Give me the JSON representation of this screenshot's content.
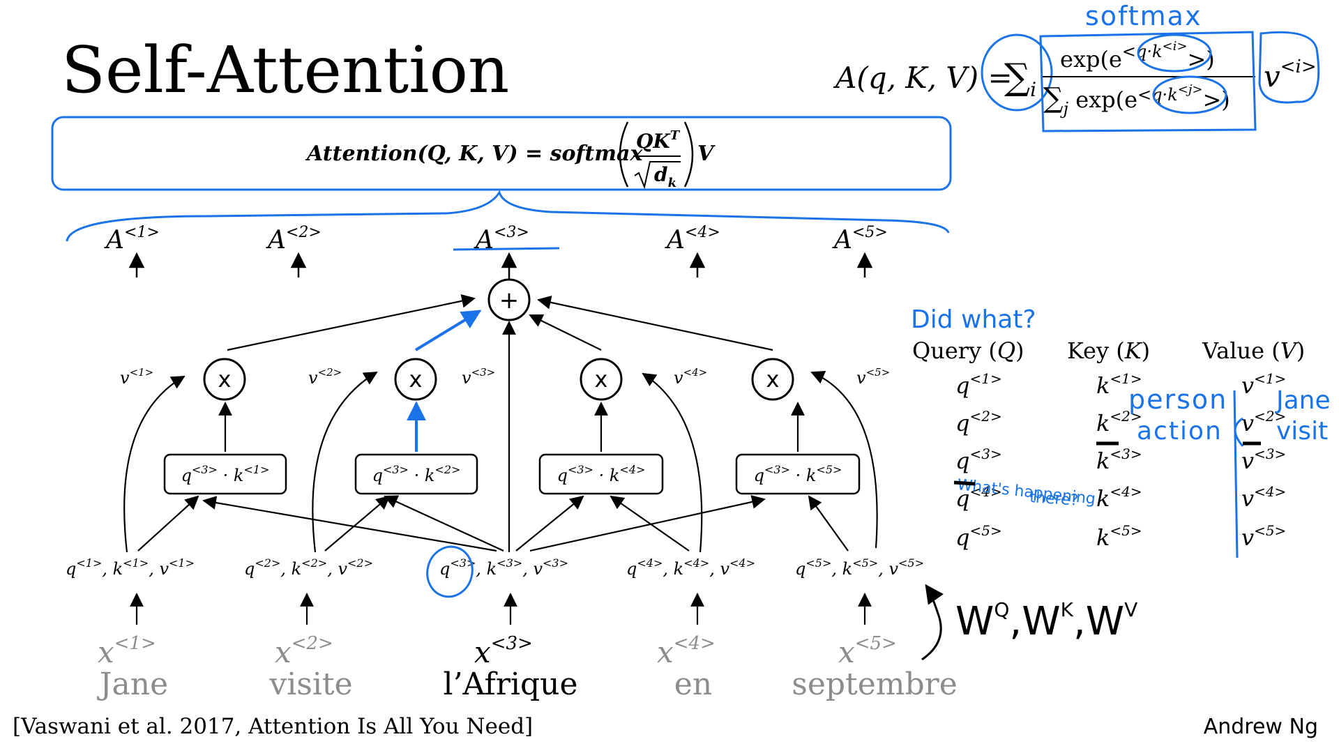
{
  "title": "Self-Attention",
  "formula_box": {
    "lhs": "Attention(Q, K, V) = softmax",
    "numerator": "QK",
    "numerator_sup": "T",
    "denominator": "d",
    "denominator_sub": "k",
    "trailing": "V"
  },
  "top_formula": {
    "lhs": "A(q, K, V) = ",
    "sum_i": "∑",
    "sum_i_sub": "i",
    "num_left": "exp(e",
    "num_inner": "<q·k",
    "num_sup": "<i>",
    "num_right": ">)",
    "den_sum": "∑",
    "den_sum_sub": "j",
    "den_left": " exp(e",
    "den_inner": "<q·k",
    "den_sup": "<j>",
    "den_right": ">)",
    "v_term": "v",
    "v_sup": "<i>"
  },
  "annotations": {
    "softmax": "softmax",
    "did_what": "Did what?",
    "person": "person",
    "action": "action",
    "jane": "Jane",
    "visit": "visit",
    "whats_happening_1": "What's happening",
    "whats_happening_2": "there?",
    "weights": "W",
    "weights_q": "Q",
    "weights_k": "K",
    "weights_v": "V",
    "weights_sep": ","
  },
  "outputs": [
    {
      "base": "A",
      "sup": "<1>"
    },
    {
      "base": "A",
      "sup": "<2>"
    },
    {
      "base": "A",
      "sup": "<3>"
    },
    {
      "base": "A",
      "sup": "<4>"
    },
    {
      "base": "A",
      "sup": "<5>"
    }
  ],
  "plus_symbol": "+",
  "mult_symbol": "x",
  "v_labels": [
    "v",
    "v",
    "v",
    "v",
    "v"
  ],
  "v_sups": [
    "<1>",
    "<2>",
    "<3>",
    "<4>",
    "<5>"
  ],
  "dot_boxes": [
    {
      "q": "q",
      "q_sup": "<3>",
      "dot": " · ",
      "k": "k",
      "k_sup": "<1>"
    },
    {
      "q": "q",
      "q_sup": "<3>",
      "dot": " · ",
      "k": "k",
      "k_sup": "<2>"
    },
    {
      "q": "q",
      "q_sup": "<3>",
      "dot": " · ",
      "k": "k",
      "k_sup": "<4>"
    },
    {
      "q": "q",
      "q_sup": "<3>",
      "dot": " · ",
      "k": "k",
      "k_sup": "<5>"
    }
  ],
  "qkv_rows": [
    {
      "idx": "<1>"
    },
    {
      "idx": "<2>"
    },
    {
      "idx": "<3>"
    },
    {
      "idx": "<4>"
    },
    {
      "idx": "<5>"
    }
  ],
  "qkv_letters": {
    "q": "q",
    "k": "k",
    "v": "v",
    "sep": ", "
  },
  "inputs": [
    {
      "x": "x",
      "sup": "<1>",
      "word": "Jane"
    },
    {
      "x": "x",
      "sup": "<2>",
      "word": "visite"
    },
    {
      "x": "x",
      "sup": "<3>",
      "word": "l’Afrique"
    },
    {
      "x": "x",
      "sup": "<4>",
      "word": "en"
    },
    {
      "x": "x",
      "sup": "<5>",
      "word": "septembre"
    }
  ],
  "table": {
    "headers": [
      {
        "text": "Query (",
        "sym": "Q",
        "close": ")"
      },
      {
        "text": "Key (",
        "sym": "K",
        "close": ")"
      },
      {
        "text": "Value (",
        "sym": "V",
        "close": ")"
      }
    ],
    "q_letter": "q",
    "k_letter": "k",
    "v_letter": "v",
    "sups": [
      "<1>",
      "<2>",
      "<3>",
      "<4>",
      "<5>"
    ]
  },
  "citation": "[Vaswani et al. 2017, Attention Is All You Need]",
  "author": "Andrew Ng",
  "colors": {
    "ink": "#000000",
    "blue": "#1a73e8",
    "gray": "#8c8c8c"
  }
}
